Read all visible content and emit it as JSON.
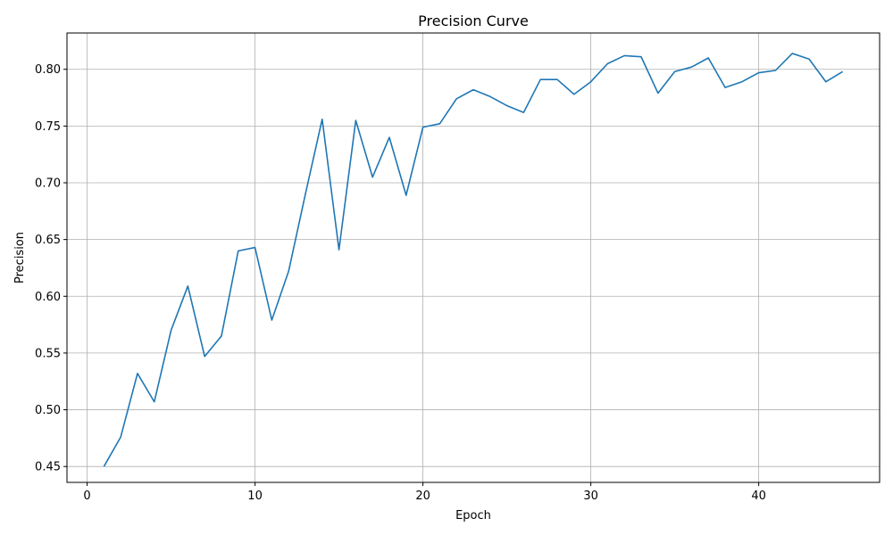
{
  "chart_data": {
    "type": "line",
    "title": "Precision Curve",
    "xlabel": "Epoch",
    "ylabel": "Precision",
    "xlim": [
      -1.2,
      47.2
    ],
    "ylim": [
      0.436,
      0.832
    ],
    "xticks": [
      0,
      10,
      20,
      30,
      40
    ],
    "yticks": [
      0.45,
      0.5,
      0.55,
      0.6,
      0.65,
      0.7,
      0.75,
      0.8
    ],
    "ytick_labels": [
      "0.45",
      "0.50",
      "0.55",
      "0.60",
      "0.65",
      "0.70",
      "0.75",
      "0.80"
    ],
    "grid": true,
    "color": "#1f77b4",
    "series": [
      {
        "x": [
          1,
          2,
          3,
          4,
          5,
          6,
          7,
          8,
          9,
          10,
          11,
          12,
          13,
          14,
          15,
          16,
          17,
          18,
          19,
          20,
          21,
          22,
          23,
          24,
          25,
          26,
          27,
          28,
          29,
          30,
          31,
          32,
          33,
          34,
          35,
          36,
          37,
          38,
          39,
          40,
          41,
          42,
          43,
          44,
          45
        ],
        "values": [
          0.45,
          0.476,
          0.532,
          0.507,
          0.57,
          0.609,
          0.547,
          0.565,
          0.64,
          0.643,
          0.579,
          0.622,
          0.69,
          0.756,
          0.641,
          0.755,
          0.705,
          0.74,
          0.689,
          0.749,
          0.752,
          0.774,
          0.782,
          0.776,
          0.768,
          0.762,
          0.791,
          0.791,
          0.778,
          0.789,
          0.805,
          0.812,
          0.811,
          0.779,
          0.798,
          0.802,
          0.81,
          0.784,
          0.789,
          0.797,
          0.799,
          0.814,
          0.809,
          0.789,
          0.798
        ]
      }
    ]
  }
}
